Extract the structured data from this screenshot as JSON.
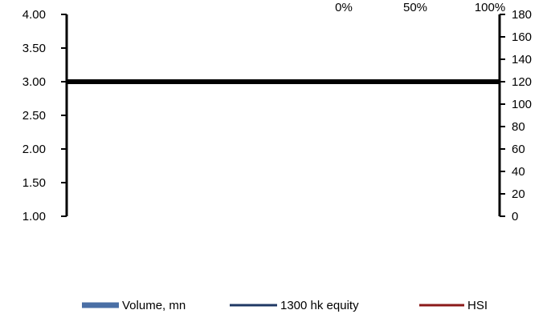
{
  "chart_data": {
    "type": "line",
    "left_axis": {
      "ylim": [
        1.0,
        4.0
      ],
      "tick_labels": [
        "1.00",
        "1.50",
        "2.00",
        "2.50",
        "3.00",
        "3.50",
        "4.00"
      ],
      "tick_values": [
        1.0,
        1.5,
        2.0,
        2.5,
        3.0,
        3.5,
        4.0
      ]
    },
    "right_axis": {
      "ylim": [
        0,
        180
      ],
      "tick_labels": [
        "0",
        "20",
        "40",
        "60",
        "80",
        "100",
        "120",
        "140",
        "160",
        "180"
      ],
      "tick_values": [
        0,
        20,
        40,
        60,
        80,
        100,
        120,
        140,
        160,
        180
      ]
    },
    "top_axis": {
      "tick_labels": [
        "0%",
        "50%",
        "100%"
      ],
      "tick_values": [
        0,
        50,
        100
      ]
    },
    "series": [
      {
        "name": "Volume, mn",
        "kind": "bar",
        "color": "#4a6fa5",
        "values": []
      },
      {
        "name": "1300 hk equity",
        "kind": "line",
        "color": "#1f3864",
        "values": []
      },
      {
        "name": "HSI",
        "kind": "line",
        "color": "#8b1a1a",
        "values": []
      }
    ],
    "reference_line": {
      "axis": "left",
      "value": 3.0,
      "color": "#000000"
    },
    "grid": false,
    "legend_position": "bottom"
  }
}
